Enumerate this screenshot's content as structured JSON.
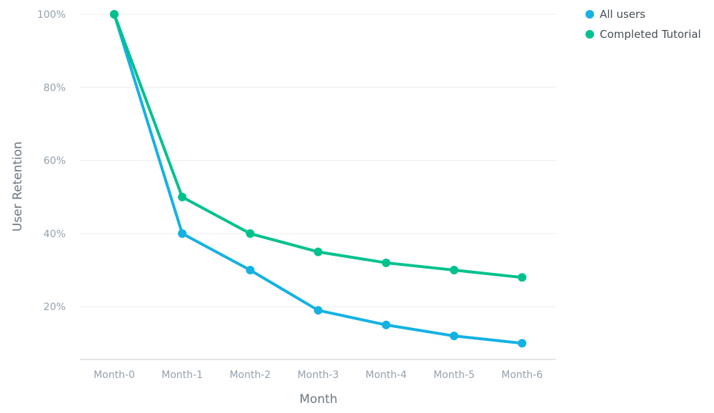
{
  "chart_data": {
    "type": "line",
    "xlabel": "Month",
    "ylabel": "User Retention",
    "categories": [
      "Month-0",
      "Month-1",
      "Month-2",
      "Month-3",
      "Month-4",
      "Month-5",
      "Month-6"
    ],
    "ylim": [
      0,
      100
    ],
    "yticks": [
      20,
      40,
      60,
      80,
      100
    ],
    "ytick_labels": [
      "20%",
      "40%",
      "60%",
      "80%",
      "100%"
    ],
    "grid": true,
    "legend_position": "top-right",
    "series": [
      {
        "name": "All users",
        "color": "#14b2e2",
        "values": [
          100,
          40,
          30,
          19,
          15,
          12,
          10
        ]
      },
      {
        "name": "Completed Tutorial",
        "color": "#00c18d",
        "values": [
          100,
          50,
          40,
          35,
          32,
          30,
          28
        ]
      }
    ]
  }
}
